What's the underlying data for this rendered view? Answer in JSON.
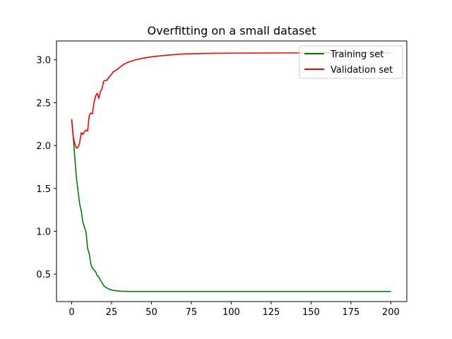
{
  "chart_data": {
    "type": "line",
    "title": "Overfitting on a small dataset",
    "xlabel": "",
    "ylabel": "",
    "xlim": [
      -9.5,
      210
    ],
    "ylim": [
      0.18,
      3.22
    ],
    "xticks": [
      0,
      25,
      50,
      75,
      100,
      125,
      150,
      175,
      200
    ],
    "yticks": [
      0.5,
      1.0,
      1.5,
      2.0,
      2.5,
      3.0
    ],
    "ytick_labels": [
      "0.5",
      "1.0",
      "1.5",
      "2.0",
      "2.5",
      "3.0"
    ],
    "grid": false,
    "legend_position": "top-right",
    "series": [
      {
        "name": "Training set",
        "color": "#008000",
        "x": [
          0,
          1,
          2,
          3,
          4,
          5,
          6,
          7,
          8,
          9,
          10,
          11,
          12,
          13,
          14,
          15,
          16,
          17,
          18,
          19,
          20,
          21,
          22,
          23,
          24,
          25,
          28,
          32,
          36,
          40,
          50,
          75,
          100,
          125,
          150,
          175,
          200
        ],
        "y": [
          2.3,
          2.1,
          1.85,
          1.62,
          1.47,
          1.32,
          1.24,
          1.11,
          1.05,
          0.99,
          0.8,
          0.74,
          0.62,
          0.57,
          0.55,
          0.53,
          0.48,
          0.47,
          0.43,
          0.4,
          0.37,
          0.35,
          0.34,
          0.33,
          0.32,
          0.315,
          0.305,
          0.3,
          0.298,
          0.298,
          0.298,
          0.298,
          0.298,
          0.298,
          0.298,
          0.298,
          0.298
        ]
      },
      {
        "name": "Validation set",
        "color": "#ff0000",
        "x": [
          0,
          1,
          2,
          3,
          4,
          5,
          6,
          7,
          8,
          9,
          10,
          11,
          12,
          13,
          14,
          15,
          16,
          17,
          18,
          19,
          20,
          21,
          22,
          23,
          24,
          25,
          26,
          28,
          30,
          32,
          35,
          40,
          45,
          50,
          60,
          70,
          80,
          90,
          100,
          125,
          150,
          175,
          200
        ],
        "y": [
          2.31,
          2.1,
          2.02,
          1.97,
          1.98,
          2.03,
          2.15,
          2.13,
          2.16,
          2.18,
          2.17,
          2.35,
          2.38,
          2.37,
          2.5,
          2.58,
          2.61,
          2.55,
          2.63,
          2.66,
          2.75,
          2.76,
          2.76,
          2.79,
          2.81,
          2.83,
          2.86,
          2.88,
          2.91,
          2.94,
          2.97,
          3.0,
          3.02,
          3.035,
          3.055,
          3.068,
          3.073,
          3.076,
          3.078,
          3.08,
          3.081,
          3.081,
          3.081
        ]
      }
    ]
  }
}
